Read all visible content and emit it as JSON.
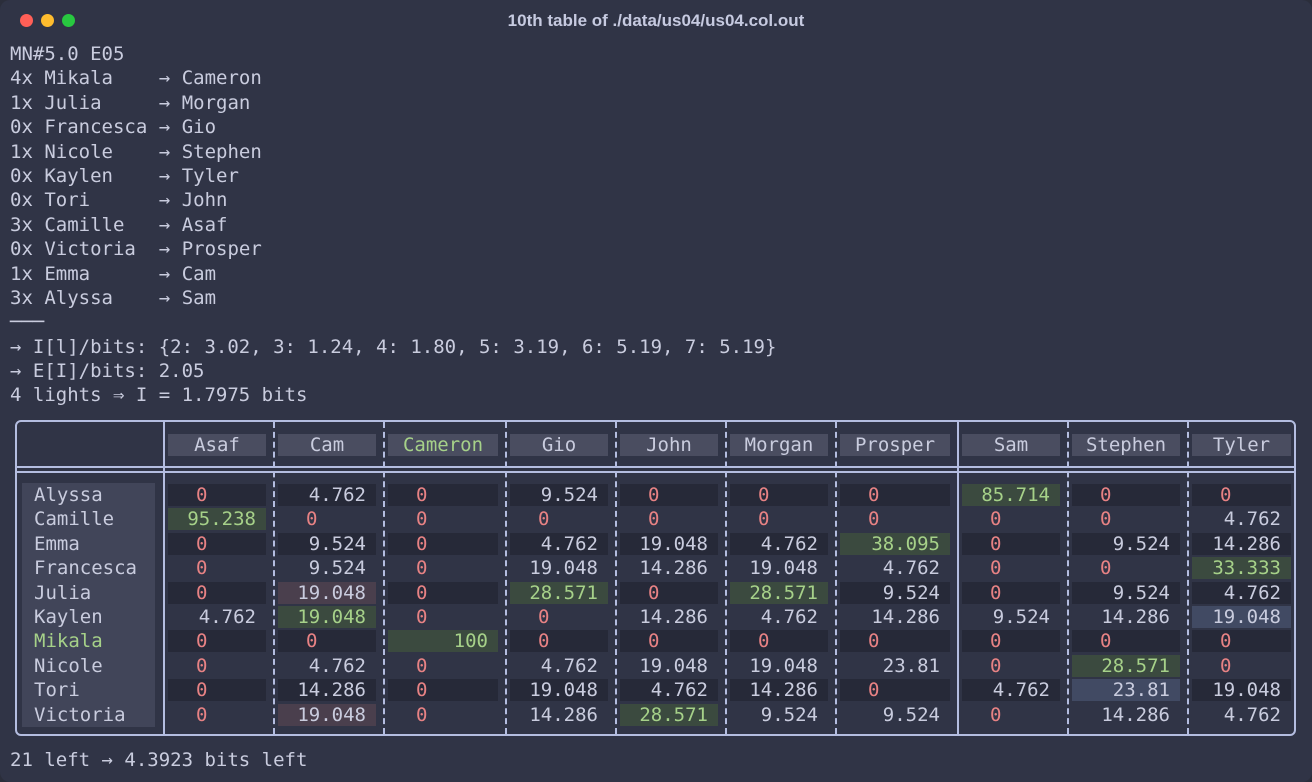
{
  "window": {
    "title": "10th table of ./data/us04/us04.col.out"
  },
  "header_line": "MN#5.0 E05",
  "pairs": [
    {
      "count": "4x",
      "left": "Mikala",
      "right": "Cameron"
    },
    {
      "count": "1x",
      "left": "Julia",
      "right": "Morgan"
    },
    {
      "count": "0x",
      "left": "Francesca",
      "right": "Gio"
    },
    {
      "count": "1x",
      "left": "Nicole",
      "right": "Stephen"
    },
    {
      "count": "0x",
      "left": "Kaylen",
      "right": "Tyler"
    },
    {
      "count": "0x",
      "left": "Tori",
      "right": "John"
    },
    {
      "count": "3x",
      "left": "Camille",
      "right": "Asaf"
    },
    {
      "count": "0x",
      "left": "Victoria",
      "right": "Prosper"
    },
    {
      "count": "1x",
      "left": "Emma",
      "right": "Cam"
    },
    {
      "count": "3x",
      "left": "Alyssa",
      "right": "Sam"
    }
  ],
  "separator": "───",
  "info_lines": [
    "→ I[l]/bits: {2: 3.02, 3: 1.24, 4: 1.80, 5: 3.19, 6: 5.19, 7: 5.19}",
    "→ E[I]/bits: 2.05",
    "4 lights ⇒ I = 1.7975 bits"
  ],
  "table": {
    "columns": [
      "Asaf",
      "Cam",
      "Cameron",
      "Gio",
      "John",
      "Morgan",
      "Prosper",
      "Sam",
      "Stephen",
      "Tyler"
    ],
    "highlight_column": "Cameron",
    "rows": [
      {
        "name": "Alyssa",
        "values": [
          "0",
          "4.762",
          "0",
          "9.524",
          "0",
          "0",
          "0",
          "85.714",
          "0",
          "0"
        ]
      },
      {
        "name": "Camille",
        "values": [
          "95.238",
          "0",
          "0",
          "0",
          "0",
          "0",
          "0",
          "0",
          "0",
          "4.762"
        ]
      },
      {
        "name": "Emma",
        "values": [
          "0",
          "9.524",
          "0",
          "4.762",
          "19.048",
          "4.762",
          "38.095",
          "0",
          "9.524",
          "14.286"
        ]
      },
      {
        "name": "Francesca",
        "values": [
          "0",
          "9.524",
          "0",
          "19.048",
          "14.286",
          "19.048",
          "4.762",
          "0",
          "0",
          "33.333"
        ]
      },
      {
        "name": "Julia",
        "values": [
          "0",
          "19.048",
          "0",
          "28.571",
          "0",
          "28.571",
          "9.524",
          "0",
          "9.524",
          "4.762"
        ]
      },
      {
        "name": "Kaylen",
        "values": [
          "4.762",
          "19.048",
          "0",
          "0",
          "14.286",
          "4.762",
          "14.286",
          "9.524",
          "14.286",
          "19.048"
        ]
      },
      {
        "name": "Mikala",
        "values": [
          "0",
          "0",
          "100",
          "0",
          "0",
          "0",
          "0",
          "0",
          "0",
          "0"
        ]
      },
      {
        "name": "Nicole",
        "values": [
          "0",
          "4.762",
          "0",
          "4.762",
          "19.048",
          "19.048",
          "23.81",
          "0",
          "28.571",
          "0"
        ]
      },
      {
        "name": "Tori",
        "values": [
          "0",
          "14.286",
          "0",
          "19.048",
          "4.762",
          "14.286",
          "0",
          "4.762",
          "23.81",
          "19.048"
        ]
      },
      {
        "name": "Victoria",
        "values": [
          "0",
          "19.048",
          "0",
          "14.286",
          "28.571",
          "9.524",
          "9.524",
          "0",
          "14.286",
          "4.762"
        ]
      }
    ],
    "highlight_row": "Mikala"
  },
  "colors": {
    "zero": "#e78284",
    "highlight": "#a6d189",
    "green_bg": "#3b4a3f",
    "pink_bg": "#4a3f4d",
    "blue_bg": "#414a63"
  },
  "footer": "21 left → 4.3923 bits left"
}
